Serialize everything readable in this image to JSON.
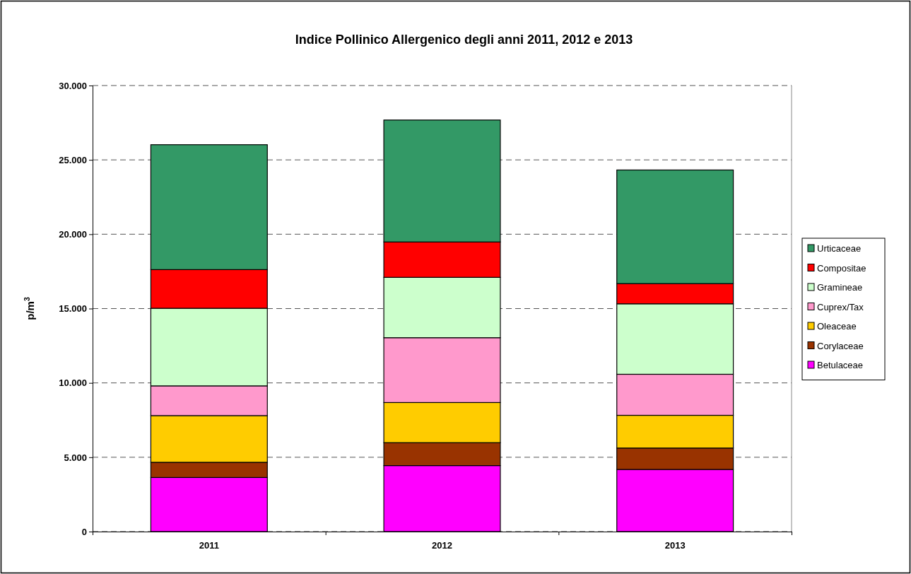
{
  "chart_data": {
    "type": "bar",
    "stacked": true,
    "title": "Indice Pollinico Allergenico degli anni 2011, 2012 e 2013",
    "ylabel": "p/m$^{3}$",
    "categories": [
      "2011",
      "2012",
      "2013"
    ],
    "series": [
      {
        "name": "Betulaceae",
        "color": "#ff00ff",
        "values": [
          3640,
          4440,
          4180
        ]
      },
      {
        "name": "Corylaceae",
        "color": "#993300",
        "values": [
          1020,
          1540,
          1440
        ]
      },
      {
        "name": "Oleaceae",
        "color": "#ffcc00",
        "values": [
          3140,
          2700,
          2200
        ]
      },
      {
        "name": "Cuprex/Tax",
        "color": "#ff99cc",
        "values": [
          2000,
          4360,
          2760
        ]
      },
      {
        "name": "Gramineae",
        "color": "#ccffcc",
        "values": [
          5220,
          4060,
          4740
        ]
      },
      {
        "name": "Compositae",
        "color": "#ff0000",
        "values": [
          2600,
          2380,
          1360
        ]
      },
      {
        "name": "Urticaceae",
        "color": "#339966",
        "values": [
          8400,
          8200,
          7640
        ]
      }
    ],
    "ylim": [
      0,
      30000
    ],
    "yticks": [
      0,
      {
        "value": 5000,
        "label": "5.000"
      },
      {
        "value": 10000,
        "label": "10.000"
      },
      {
        "value": 15000,
        "label": "15.000"
      },
      {
        "value": 20000,
        "label": "20.000"
      },
      {
        "value": 25000,
        "label": "25.000"
      },
      {
        "value": 30000,
        "label": "30.000"
      }
    ],
    "grid": "y",
    "legend": "right"
  }
}
